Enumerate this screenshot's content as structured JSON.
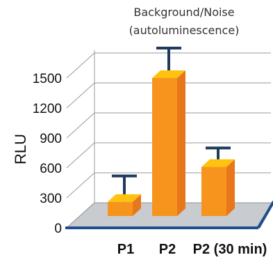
{
  "chart_data": {
    "type": "bar",
    "title_line1": "Background/Noise",
    "title_line2": "(autoluminescence)",
    "ylabel": "RLU",
    "xlabel": "",
    "categories": [
      "P1",
      "P2",
      "P2 (30 min)"
    ],
    "values": [
      260,
      1500,
      610
    ],
    "error_upper": [
      520,
      1800,
      800
    ],
    "ylim": [
      0,
      1500
    ],
    "yticks": [
      "0",
      "300",
      "600",
      "900",
      "1200",
      "1500"
    ],
    "grid": true,
    "style": "3d"
  },
  "colors": {
    "bar_front": "#f7941d",
    "bar_side": "#e8761a",
    "bar_top": "#ffc20e",
    "error_bar": "#1f3a5a",
    "floor": "#c8ccd0",
    "floor_edge": "#1f4e8c",
    "grid": "#999999"
  }
}
